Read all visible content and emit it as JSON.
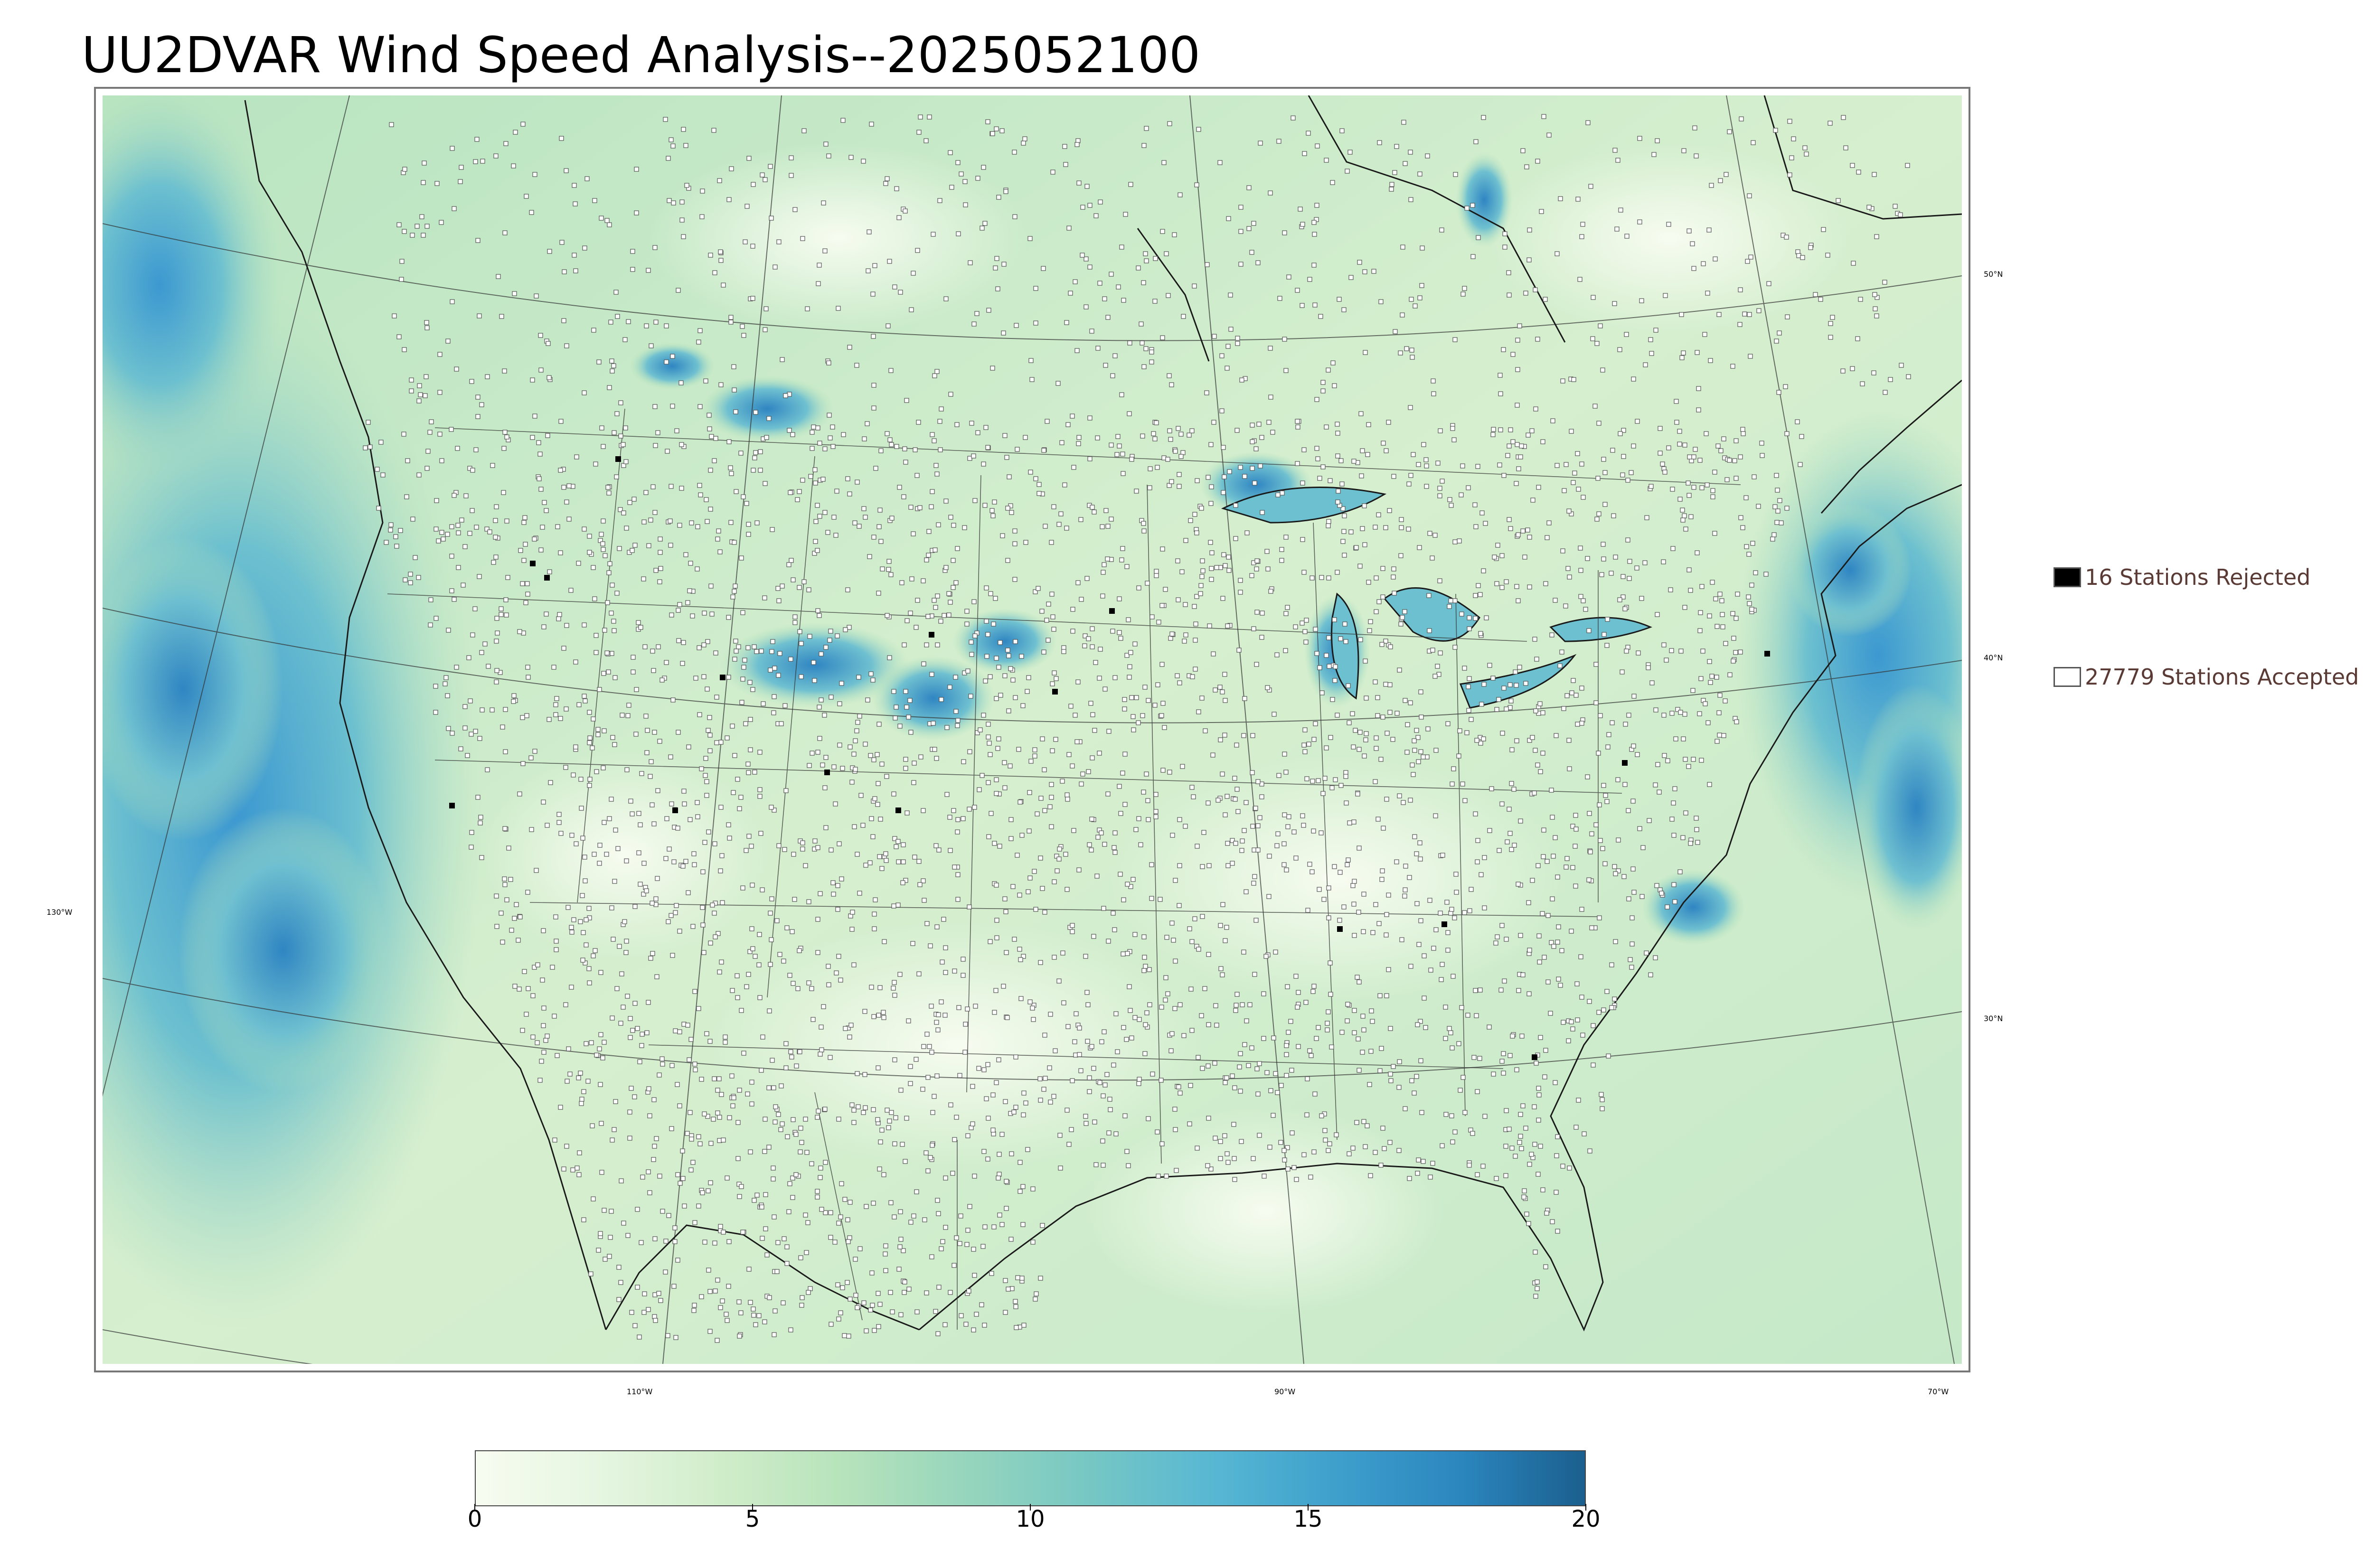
{
  "title": "UU2DVAR Wind Speed Analysis--2025052100",
  "map": {
    "projection": "lambert-conformal",
    "field": "wind speed",
    "lat_labels": [
      "50°N",
      "40°N",
      "30°N"
    ],
    "lon_labels": [
      "130°W",
      "110°W",
      "90°W",
      "70°W"
    ],
    "colors": {
      "land_low": "#f2fbef",
      "land_mid": "#c8eac6",
      "ocean_high": "#4aa8d8",
      "outline": "#222222"
    }
  },
  "legend": {
    "rejected": {
      "label": "16 Stations Rejected",
      "count": 16,
      "swatch": "#000000"
    },
    "accepted": {
      "label": "27779 Stations Accepted",
      "count": 27779,
      "swatch": "#ffffff"
    }
  },
  "colorbar": {
    "ticks": [
      "0",
      "5",
      "10",
      "15",
      "20"
    ],
    "range": [
      0,
      20
    ],
    "colors": [
      "#f7fcf0",
      "#e6f6e1",
      "#d0edca",
      "#b6e3bb",
      "#96d5bd",
      "#75c7c4",
      "#57b7d3",
      "#3e9fcc",
      "#2b86be",
      "#1b5f8e"
    ]
  }
}
